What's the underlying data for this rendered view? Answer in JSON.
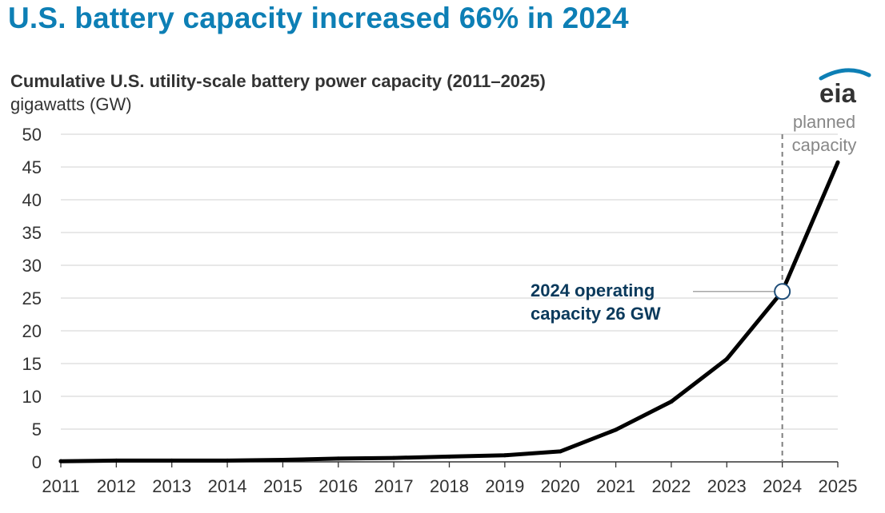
{
  "header": {
    "headline": "U.S. battery capacity increased 66% in 2024"
  },
  "logo": {
    "text": "eia",
    "color": "#0d7fb5"
  },
  "chart_data": {
    "type": "line",
    "title": "Cumulative U.S. utility-scale battery power capacity (2011–2025)",
    "ylabel": "gigawatts (GW)",
    "xlabel": "",
    "ylim": [
      0,
      50
    ],
    "yticks": [
      0,
      5,
      10,
      15,
      20,
      25,
      30,
      35,
      40,
      45,
      50
    ],
    "grid": true,
    "x": [
      "2011",
      "2012",
      "2013",
      "2014",
      "2015",
      "2016",
      "2017",
      "2018",
      "2019",
      "2020",
      "2021",
      "2022",
      "2023",
      "2024",
      "2025"
    ],
    "series": [
      {
        "values": [
          0.1,
          0.2,
          0.2,
          0.2,
          0.3,
          0.5,
          0.6,
          0.8,
          1.0,
          1.6,
          4.9,
          9.2,
          15.7,
          26.0,
          45.7
        ],
        "color": "#000000"
      }
    ],
    "reference_line": {
      "x": "2024",
      "label_lines": [
        "planned",
        "capacity"
      ],
      "color": "#7f7f7f"
    },
    "annotation": {
      "x": "2024",
      "y": 26,
      "label_lines": [
        "2024 operating",
        "capacity 26 GW"
      ],
      "color": "#0b3a5c"
    }
  }
}
